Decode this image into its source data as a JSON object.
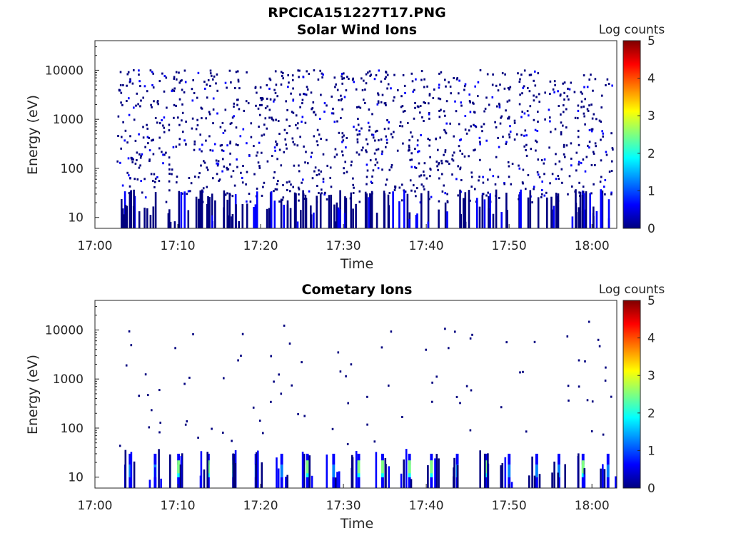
{
  "title": "RPCICA151227T17.PNG",
  "colormap": [
    "#00007f",
    "#0000ff",
    "#007fff",
    "#00ffff",
    "#7fff7f",
    "#ffff00",
    "#ff7f00",
    "#ff0000",
    "#7f0000"
  ],
  "chart_data": [
    {
      "type": "heatmap",
      "title": "Solar Wind Ions",
      "xlabel": "Time",
      "ylabel": "Energy (eV)",
      "x_ticks": [
        "17:00",
        "17:10",
        "17:20",
        "17:30",
        "17:40",
        "17:50",
        "18:00"
      ],
      "y_ticks": [
        "10",
        "100",
        "1000",
        "10000"
      ],
      "y_scale": "log",
      "xlim": [
        "17:00",
        "18:03"
      ],
      "ylim": [
        6,
        40000
      ],
      "colorbar": {
        "label": "Log counts",
        "ticks": [
          "0",
          "1",
          "2",
          "3",
          "4",
          "5"
        ],
        "range": [
          0,
          5
        ]
      },
      "mean_log_counts": 0.2
    },
    {
      "type": "heatmap",
      "title": "Cometary Ions",
      "xlabel": "Time",
      "ylabel": "Energy (eV)",
      "x_ticks": [
        "17:00",
        "17:10",
        "17:20",
        "17:30",
        "17:40",
        "17:50",
        "18:00"
      ],
      "y_ticks": [
        "10",
        "100",
        "1000",
        "10000"
      ],
      "y_scale": "log",
      "xlim": [
        "17:00",
        "18:03"
      ],
      "ylim": [
        6,
        40000
      ],
      "colorbar": {
        "label": "Log counts",
        "ticks": [
          "0",
          "1",
          "2",
          "3",
          "4",
          "5"
        ],
        "range": [
          0,
          5
        ]
      },
      "low_energy_bursts_log_counts": [
        1.0,
        2.0
      ]
    }
  ]
}
